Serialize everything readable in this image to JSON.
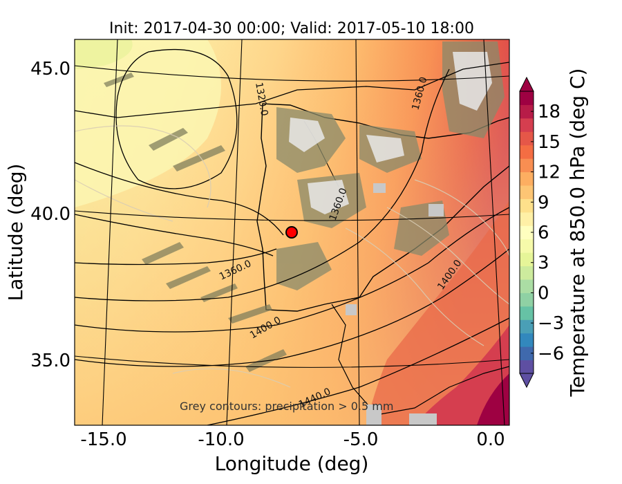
{
  "title": "Init: 2017-04-30 00:00; Valid: 2017-05-10 18:00",
  "xlabel": "Longitude (deg)",
  "ylabel": "Latitude (deg)",
  "x_ticks": [
    "-15.0",
    "-10.0",
    "-5.0",
    "0.0"
  ],
  "y_ticks": [
    "45.0",
    "40.0",
    "35.0"
  ],
  "colorbar": {
    "label": "Temperature at 850.0 hPa (deg C)",
    "ticks": [
      "18",
      "15",
      "12",
      "9",
      "6",
      "3",
      "0",
      "−3",
      "−6"
    ],
    "range": [
      -8,
      20
    ],
    "extend": "both",
    "colors": [
      "#5e4fa2",
      "#3f69ad",
      "#3288bd",
      "#4a9fb6",
      "#66c2a5",
      "#8fd1a4",
      "#abdda4",
      "#cdeb9d",
      "#e6f598",
      "#f6faaa",
      "#ffffbf",
      "#fff0a6",
      "#fee08b",
      "#fdc574",
      "#fdae61",
      "#f88e52",
      "#f46d43",
      "#e55748",
      "#d53e4f",
      "#b71c48",
      "#9e0142"
    ]
  },
  "contour_labels": [
    "1320.0",
    "1360.0",
    "1360.0",
    "1360.0",
    "1400.0",
    "1400.0",
    "1440.0"
  ],
  "note": "Grey contours: precipitation  > 0.5 mm",
  "marker": {
    "color": "#ff0000",
    "edge": "#000000"
  },
  "chart_data": {
    "type": "heatmap",
    "title": "Init: 2017-04-30 00:00; Valid: 2017-05-10 18:00",
    "xlabel": "Longitude (deg)",
    "ylabel": "Latitude (deg)",
    "xlim": [
      -15.9,
      0.1
    ],
    "ylim": [
      32.7,
      46.0
    ],
    "variable": "Temperature at 850.0 hPa (deg C)",
    "colorbar_range": [
      -8,
      20
    ],
    "geopotential_contour_levels": [
      1320.0,
      1360.0,
      1400.0,
      1440.0
    ],
    "marked_point": {
      "lon": -7.6,
      "lat": 39.3
    }
  }
}
